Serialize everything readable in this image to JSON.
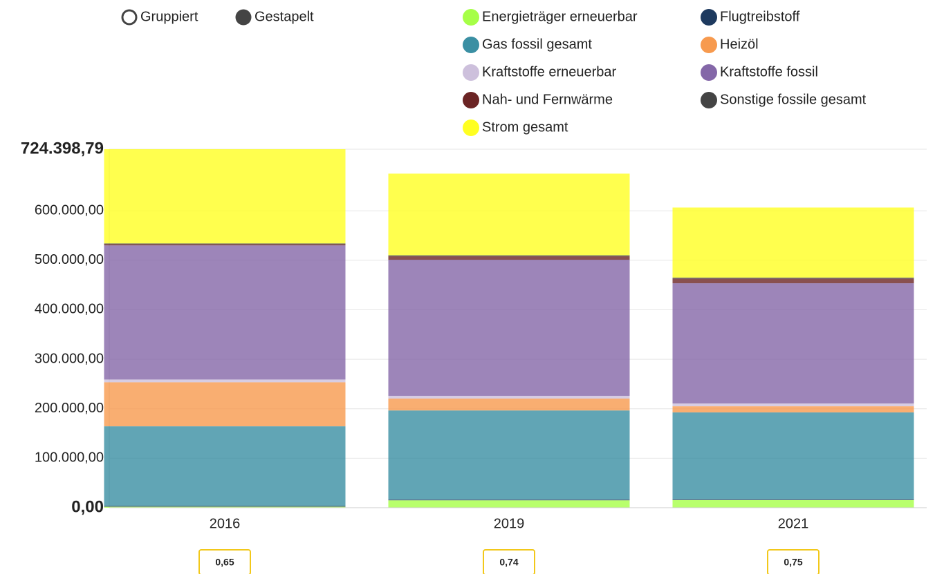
{
  "controls": {
    "options": [
      "Gruppiert",
      "Gestapelt"
    ],
    "selected": "Gestapelt"
  },
  "chart_data": {
    "type": "stacked_bar",
    "categories": [
      "2016",
      "2019",
      "2021"
    ],
    "series": [
      {
        "name": "Energieträger erneuerbar",
        "color": "#a6ff47",
        "values": [
          2000,
          15000,
          15500
        ]
      },
      {
        "name": "Flugtreibstoff",
        "color": "#1e3a5f",
        "values": [
          1500,
          1500,
          1500
        ]
      },
      {
        "name": "Gas fossil gesamt",
        "color": "#3a8fa3",
        "values": [
          161000,
          180000,
          175500
        ]
      },
      {
        "name": "Heizöl",
        "color": "#f79a4e",
        "values": [
          89000,
          24000,
          12500
        ]
      },
      {
        "name": "Kraftstoffe erneuerbar",
        "color": "#cdc0dc",
        "values": [
          5500,
          5500,
          5500
        ]
      },
      {
        "name": "Kraftstoffe fossil",
        "color": "#8467a8",
        "values": [
          271000,
          275000,
          243000
        ]
      },
      {
        "name": "Nah- und Fernwärme",
        "color": "#6b2424",
        "values": [
          2500,
          7000,
          9500
        ]
      },
      {
        "name": "Sonstige fossile gesamt",
        "color": "#444444",
        "values": [
          1500,
          2000,
          2000
        ]
      },
      {
        "name": "Strom gesamt",
        "color": "#ffff22",
        "values": [
          190400,
          165000,
          141500
        ]
      }
    ],
    "ylim": [
      0,
      724398.79
    ],
    "yticks": [
      {
        "value": 0,
        "label": "0,00"
      },
      {
        "value": 100000,
        "label": "100.000,00"
      },
      {
        "value": 200000,
        "label": "200.000,00"
      },
      {
        "value": 300000,
        "label": "300.000,00"
      },
      {
        "value": 400000,
        "label": "400.000,00"
      },
      {
        "value": 500000,
        "label": "500.000,00"
      },
      {
        "value": 600000,
        "label": "600.000,00"
      },
      {
        "value": 724398.79,
        "label": "724.398,79"
      }
    ],
    "grid": true,
    "badges": [
      "0,65",
      "0,74",
      "0,75"
    ]
  }
}
